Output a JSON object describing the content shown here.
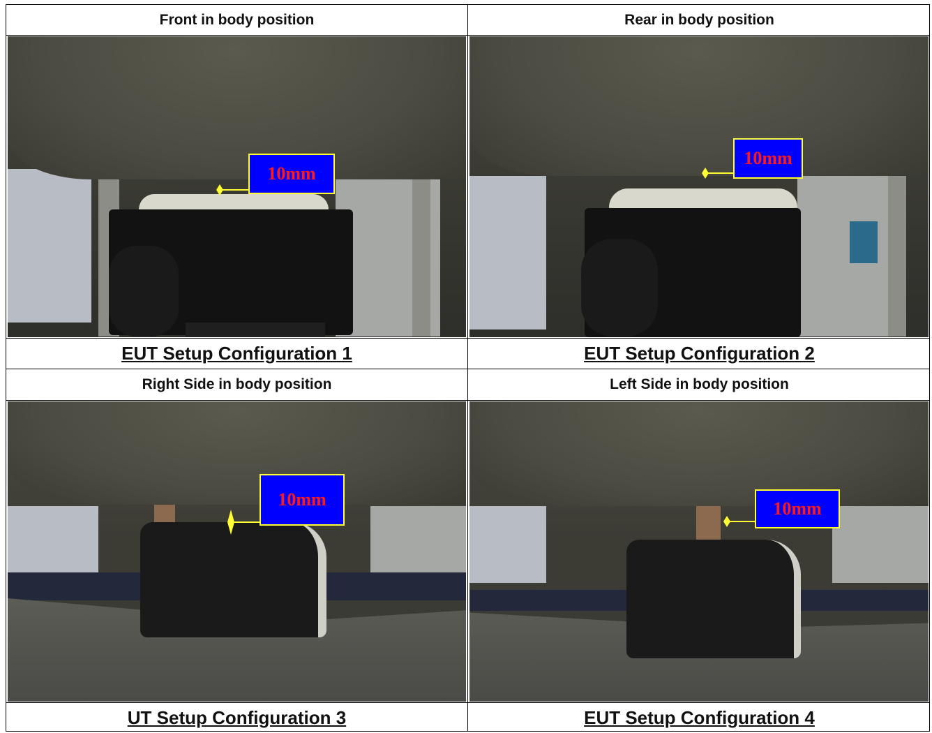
{
  "cells": [
    {
      "title": "Front in body position",
      "caption": "EUT Setup Configuration 1",
      "label": "10mm"
    },
    {
      "title": "Rear in body position",
      "caption": "EUT Setup Configuration 2",
      "label": "10mm"
    },
    {
      "title": "Right Side in body position",
      "caption": "UT Setup Configuration 3",
      "label": "10mm"
    },
    {
      "title": "Left Side in body position",
      "caption": "EUT Setup Configuration 4",
      "label": "10mm"
    }
  ],
  "colors": {
    "label_fill": "#0000ff",
    "label_border": "#ffff33",
    "label_text": "#ff1a1a",
    "marker": "#ffff33"
  }
}
